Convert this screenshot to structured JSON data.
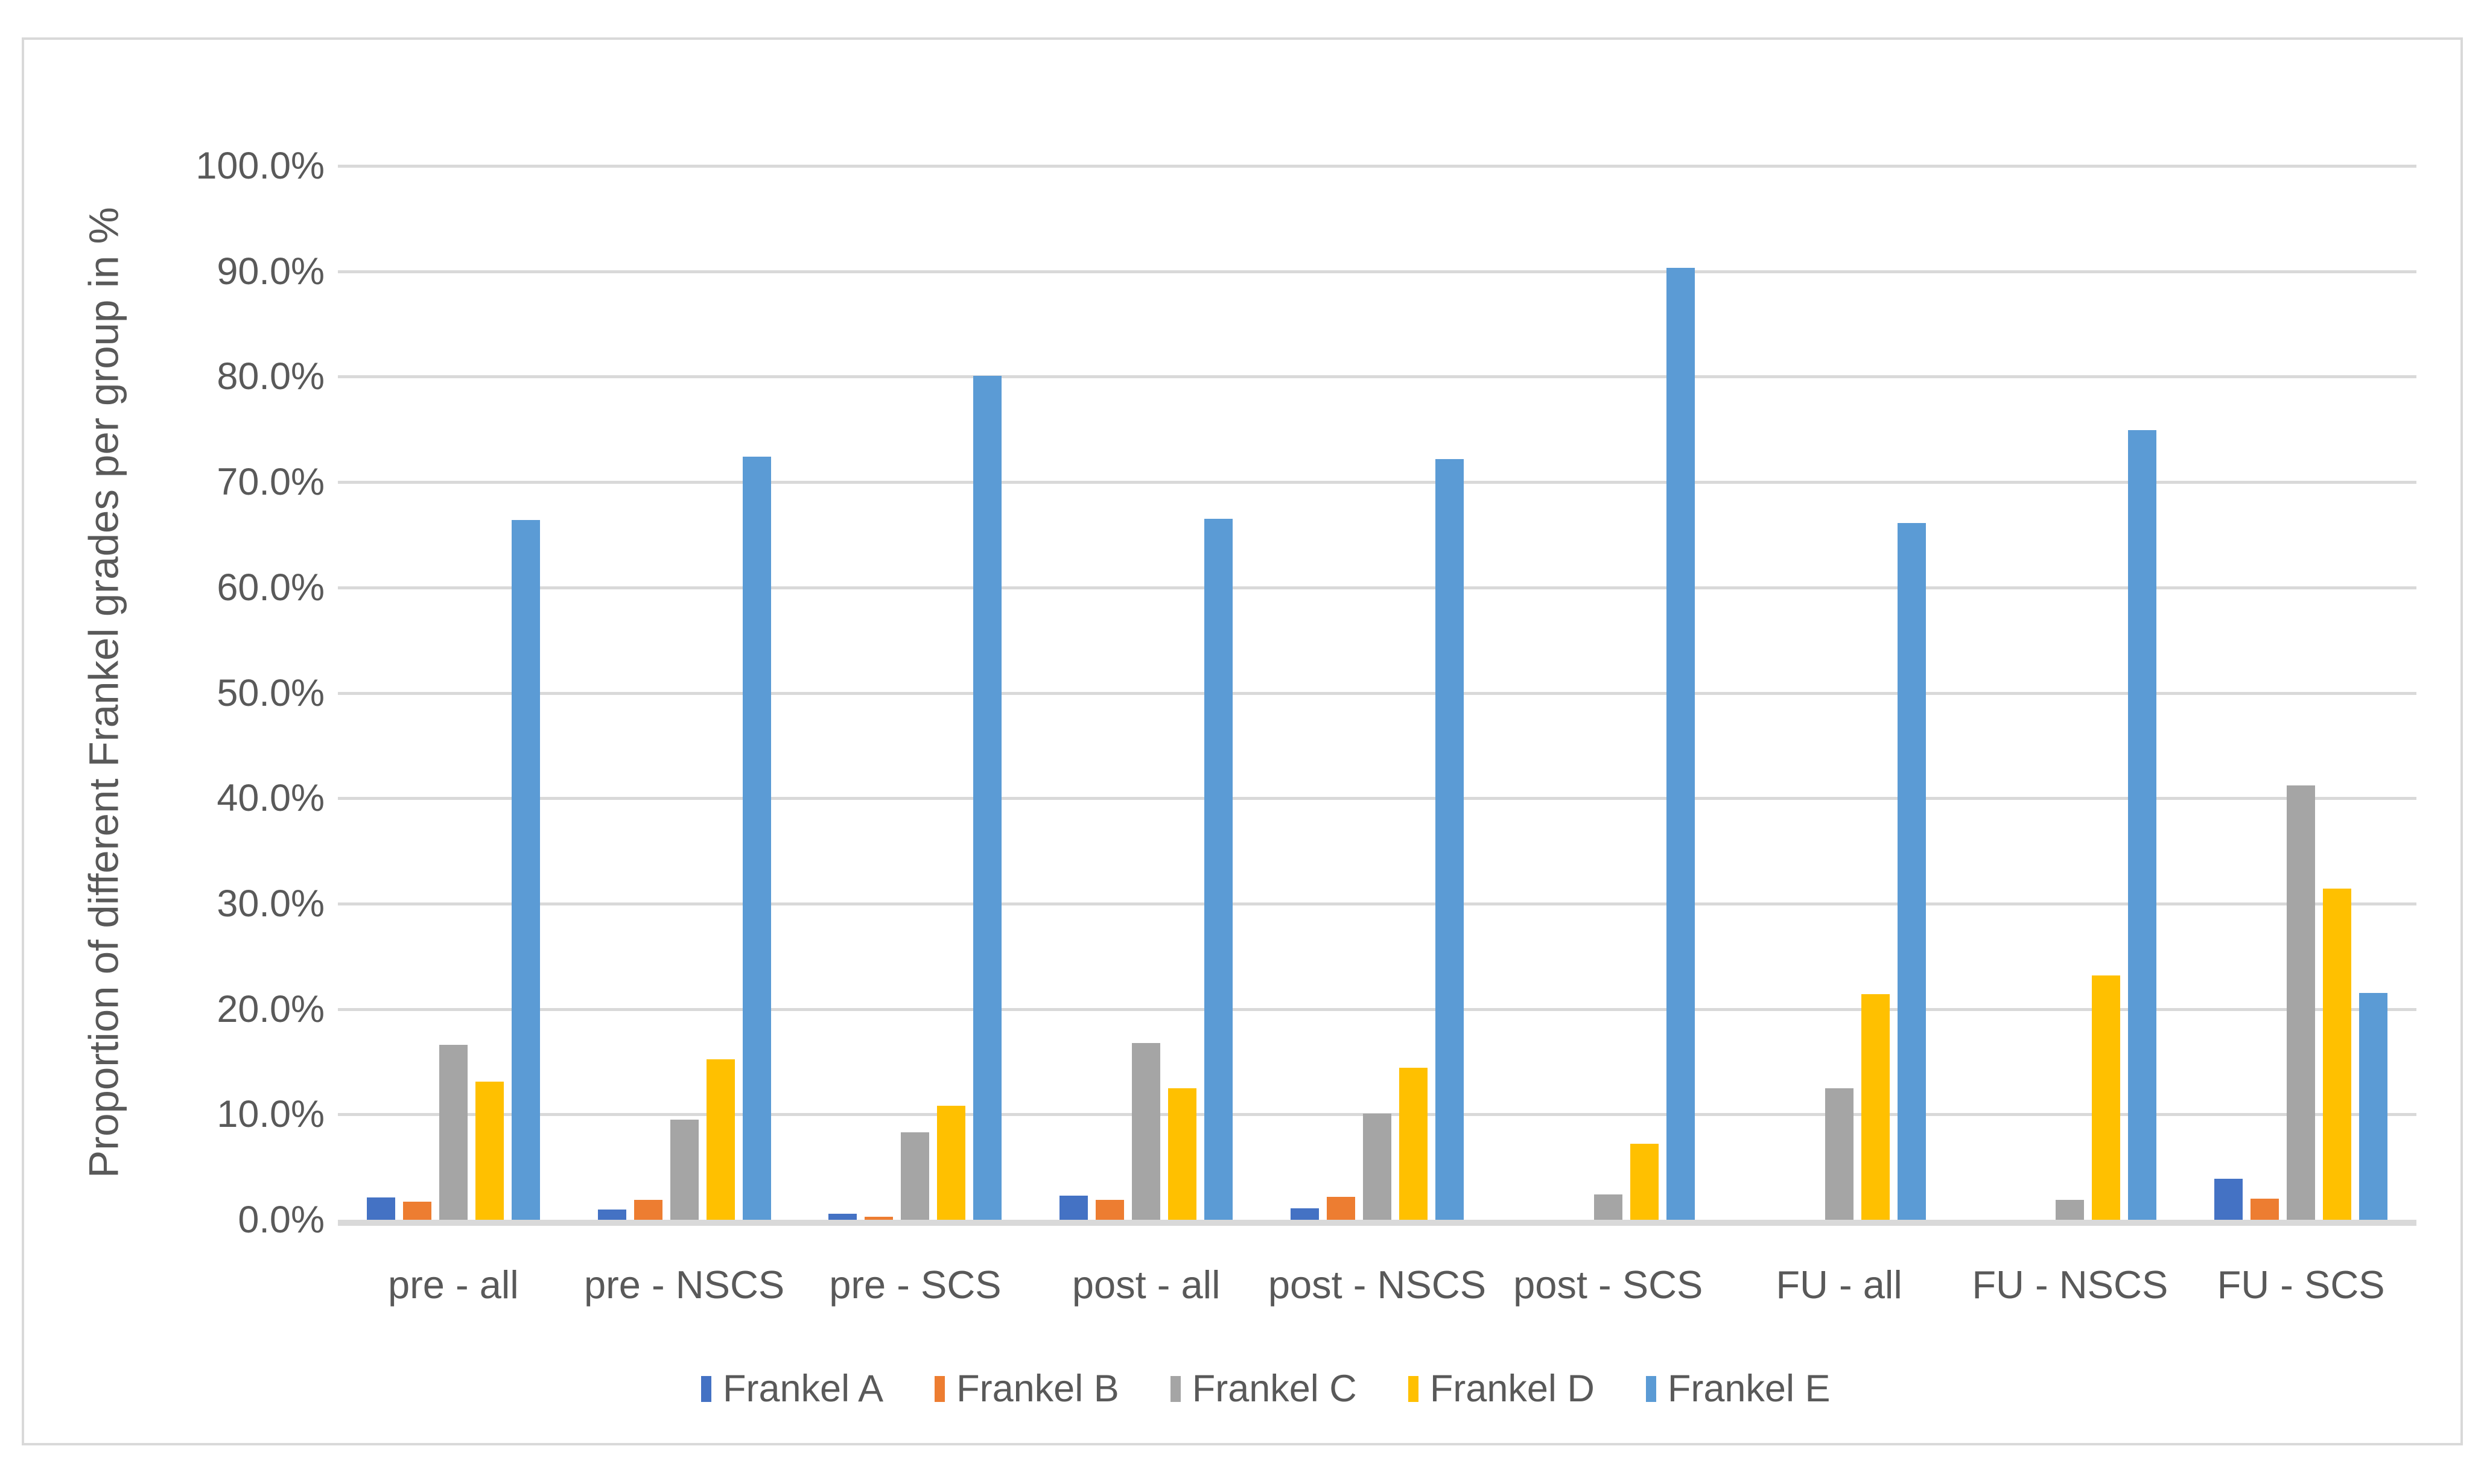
{
  "chart_data": {
    "type": "bar",
    "title": "",
    "ylabel": "Proportion of different Frankel grades per group in %",
    "xlabel": "",
    "y_axis": {
      "min": 0,
      "max": 100,
      "step": 10,
      "tick_decimals": 1,
      "tick_suffix": "%"
    },
    "grid": true,
    "legend_position": "bottom",
    "categories": [
      "pre - all",
      "pre - NSCS",
      "pre - SCS",
      "post - all",
      "post - NSCS",
      "post - SCS",
      "FU - all",
      "FU - NSCS",
      "FU - SCS"
    ],
    "series": [
      {
        "name": "Frankel A",
        "color": "#4472C4",
        "values": [
          2.1,
          1.0,
          0.6,
          2.3,
          1.1,
          0,
          0,
          0,
          3.9
        ]
      },
      {
        "name": "Frankel B",
        "color": "#ED7D31",
        "values": [
          1.7,
          1.9,
          0.3,
          1.9,
          2.2,
          0,
          0,
          0,
          2.0
        ]
      },
      {
        "name": "Frankel C",
        "color": "#A5A5A5",
        "values": [
          16.6,
          9.5,
          8.3,
          16.8,
          10.1,
          2.4,
          12.5,
          1.9,
          41.2
        ]
      },
      {
        "name": "Frankel D",
        "color": "#FFC000",
        "values": [
          13.1,
          15.2,
          10.8,
          12.5,
          14.4,
          7.2,
          21.4,
          23.2,
          31.4
        ]
      },
      {
        "name": "Frankel E",
        "color": "#5B9BD5",
        "values": [
          66.4,
          72.4,
          80.1,
          66.5,
          72.2,
          90.3,
          66.1,
          74.9,
          21.5
        ]
      }
    ],
    "y_tick_labels": [
      "0.0%",
      "10.0%",
      "20.0%",
      "30.0%",
      "40.0%",
      "50.0%",
      "60.0%",
      "70.0%",
      "80.0%",
      "90.0%",
      "100.0%"
    ]
  },
  "colors": {
    "background": "#FFFFFF",
    "gridline": "#D9D9D9",
    "axis_line": "#D9D9D9",
    "text": "#595959",
    "chart_border": "#D9D9D9"
  }
}
